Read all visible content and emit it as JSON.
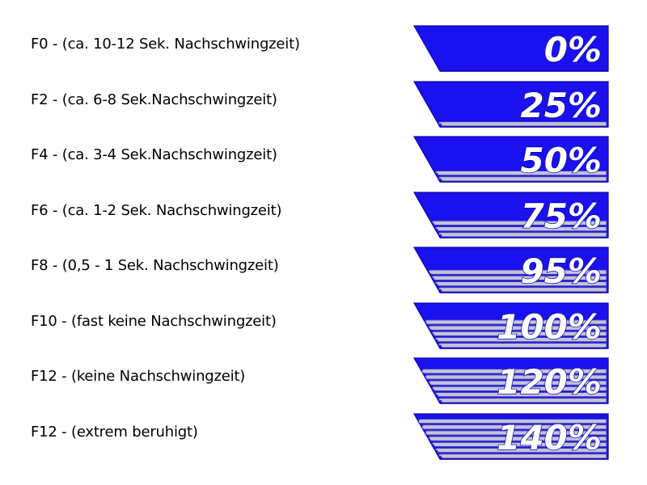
{
  "colors": {
    "badge_fill": "#1b11ee",
    "badge_dark": "#0c07a8",
    "stripe_fill": "#c3c3d6",
    "stripe_line": "#3a35c8",
    "text_on_badge": "#ffffff",
    "label_text": "#000000"
  },
  "rows": [
    {
      "label": "F0 - (ca. 10-12 Sek. Nachschwingzeit)",
      "value": "0%",
      "stripes": 0
    },
    {
      "label": "F2 - (ca. 6-8 Sek.Nachschwingzeit)",
      "value": "25%",
      "stripes": 1
    },
    {
      "label": "F4 - (ca. 3-4 Sek.Nachschwingzeit)",
      "value": "50%",
      "stripes": 2
    },
    {
      "label": "F6 - (ca. 1-2 Sek. Nachschwingzeit)",
      "value": "75%",
      "stripes": 3
    },
    {
      "label": "F8 - (0,5 - 1 Sek. Nachschwingzeit)",
      "value": "95%",
      "stripes": 4
    },
    {
      "label": "F10 - (fast keine Nachschwingzeit)",
      "value": "100%",
      "stripes": 5
    },
    {
      "label": "F12 - (keine Nachschwingzeit)",
      "value": "120%",
      "stripes": 6
    },
    {
      "label": "F12 - (extrem beruhigt)",
      "value": "140%",
      "stripes": 7
    }
  ]
}
